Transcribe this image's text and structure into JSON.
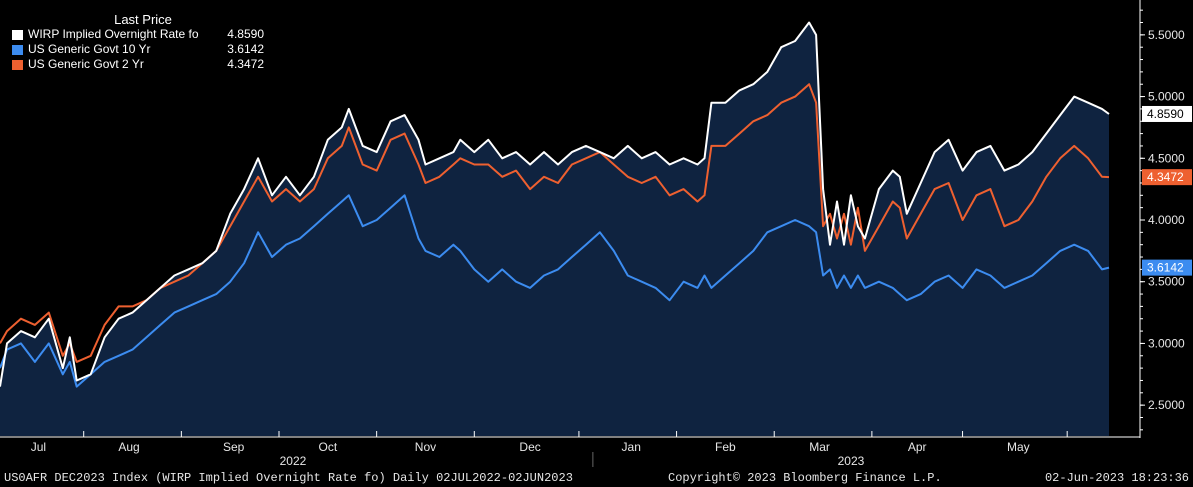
{
  "colors": {
    "background": "#000000",
    "plot_fill": "#0f2340",
    "wirp": "#ffffff",
    "govt10": "#3c8cf0",
    "govt2": "#ee6030",
    "axis": "#ffffff",
    "axis_text": "#e6e6e6"
  },
  "legend": {
    "header": "Last Price",
    "rows": [
      {
        "label": "WIRP Implied Overnight Rate fo",
        "value": "4.8590",
        "color": "#ffffff"
      },
      {
        "label": "US Generic Govt 10 Yr",
        "value": "3.6142",
        "color": "#3c8cf0"
      },
      {
        "label": "US Generic Govt 2 Yr",
        "value": "4.3472",
        "color": "#ee6030"
      }
    ]
  },
  "footer": {
    "left": "US0AFR DEC2023 Index (WIRP Implied Overnight Rate fo)  Daily 02JUL2022-02JUN2023",
    "center": "Copyright© 2023 Bloomberg Finance L.P.",
    "right": "02-Jun-2023 18:23:36"
  },
  "chart_data": {
    "type": "line",
    "title": "",
    "xlabel": "",
    "ylabel": "",
    "ylim": [
      2.25,
      5.75
    ],
    "y_ticks": [
      "2.5000",
      "3.0000",
      "3.5000",
      "4.0000",
      "4.5000",
      "5.0000",
      "5.5000"
    ],
    "y_tick_values": [
      2.5,
      3.0,
      3.5,
      4.0,
      4.5,
      5.0,
      5.5
    ],
    "x_range": [
      0,
      160
    ],
    "x_month_labels": [
      {
        "label": "Jul",
        "x": 5.5
      },
      {
        "label": "Aug",
        "x": 18.5
      },
      {
        "label": "Sep",
        "x": 33.5
      },
      {
        "label": "Oct",
        "x": 47
      },
      {
        "label": "Nov",
        "x": 61
      },
      {
        "label": "Dec",
        "x": 76
      },
      {
        "label": "Jan",
        "x": 90.5
      },
      {
        "label": "Feb",
        "x": 104
      },
      {
        "label": "Mar",
        "x": 117.5
      },
      {
        "label": "Apr",
        "x": 131.5
      },
      {
        "label": "May",
        "x": 146
      }
    ],
    "x_month_boundaries": [
      12,
      26,
      40,
      54,
      68,
      83,
      97,
      111,
      125,
      138,
      153
    ],
    "x_year_labels": [
      {
        "label": "2022",
        "x": 42
      },
      {
        "label": "2023",
        "x": 122
      }
    ],
    "year_divider_x": 85,
    "series": [
      {
        "name": "WIRP Implied Overnight Rate fo",
        "color": "#ffffff",
        "last_label": "4.8590",
        "points": [
          [
            0,
            2.65
          ],
          [
            1,
            3.0
          ],
          [
            3,
            3.1
          ],
          [
            5,
            3.05
          ],
          [
            7,
            3.2
          ],
          [
            9,
            2.8
          ],
          [
            10,
            3.05
          ],
          [
            11,
            2.7
          ],
          [
            13,
            2.75
          ],
          [
            15,
            3.05
          ],
          [
            17,
            3.2
          ],
          [
            19,
            3.25
          ],
          [
            21,
            3.35
          ],
          [
            23,
            3.45
          ],
          [
            25,
            3.55
          ],
          [
            27,
            3.6
          ],
          [
            29,
            3.65
          ],
          [
            31,
            3.75
          ],
          [
            33,
            4.05
          ],
          [
            35,
            4.25
          ],
          [
            37,
            4.5
          ],
          [
            39,
            4.2
          ],
          [
            41,
            4.35
          ],
          [
            43,
            4.2
          ],
          [
            45,
            4.35
          ],
          [
            47,
            4.65
          ],
          [
            49,
            4.75
          ],
          [
            50,
            4.9
          ],
          [
            52,
            4.6
          ],
          [
            54,
            4.55
          ],
          [
            56,
            4.8
          ],
          [
            58,
            4.85
          ],
          [
            60,
            4.65
          ],
          [
            61,
            4.45
          ],
          [
            63,
            4.5
          ],
          [
            65,
            4.55
          ],
          [
            66,
            4.65
          ],
          [
            68,
            4.55
          ],
          [
            70,
            4.65
          ],
          [
            72,
            4.5
          ],
          [
            74,
            4.55
          ],
          [
            76,
            4.45
          ],
          [
            78,
            4.55
          ],
          [
            80,
            4.45
          ],
          [
            82,
            4.55
          ],
          [
            84,
            4.6
          ],
          [
            86,
            4.55
          ],
          [
            88,
            4.5
          ],
          [
            90,
            4.6
          ],
          [
            92,
            4.5
          ],
          [
            94,
            4.55
          ],
          [
            96,
            4.45
          ],
          [
            98,
            4.5
          ],
          [
            100,
            4.45
          ],
          [
            101,
            4.5
          ],
          [
            102,
            4.95
          ],
          [
            104,
            4.95
          ],
          [
            106,
            5.05
          ],
          [
            108,
            5.1
          ],
          [
            110,
            5.2
          ],
          [
            112,
            5.4
          ],
          [
            114,
            5.45
          ],
          [
            116,
            5.6
          ],
          [
            117,
            5.5
          ],
          [
            118,
            4.25
          ],
          [
            119,
            3.8
          ],
          [
            120,
            4.15
          ],
          [
            121,
            3.8
          ],
          [
            122,
            4.2
          ],
          [
            123,
            3.95
          ],
          [
            124,
            3.85
          ],
          [
            126,
            4.25
          ],
          [
            128,
            4.4
          ],
          [
            129,
            4.35
          ],
          [
            130,
            4.05
          ],
          [
            132,
            4.3
          ],
          [
            134,
            4.55
          ],
          [
            136,
            4.65
          ],
          [
            138,
            4.4
          ],
          [
            140,
            4.55
          ],
          [
            142,
            4.6
          ],
          [
            144,
            4.4
          ],
          [
            146,
            4.45
          ],
          [
            148,
            4.55
          ],
          [
            150,
            4.7
          ],
          [
            152,
            4.85
          ],
          [
            154,
            5.0
          ],
          [
            156,
            4.95
          ],
          [
            158,
            4.9
          ],
          [
            159,
            4.859
          ]
        ]
      },
      {
        "name": "US Generic Govt 10 Yr",
        "color": "#3c8cf0",
        "last_label": "3.6142",
        "points": [
          [
            0,
            2.8
          ],
          [
            1,
            2.95
          ],
          [
            3,
            3.0
          ],
          [
            5,
            2.85
          ],
          [
            7,
            3.0
          ],
          [
            9,
            2.75
          ],
          [
            10,
            2.85
          ],
          [
            11,
            2.65
          ],
          [
            13,
            2.75
          ],
          [
            15,
            2.85
          ],
          [
            17,
            2.9
          ],
          [
            19,
            2.95
          ],
          [
            21,
            3.05
          ],
          [
            23,
            3.15
          ],
          [
            25,
            3.25
          ],
          [
            27,
            3.3
          ],
          [
            29,
            3.35
          ],
          [
            31,
            3.4
          ],
          [
            33,
            3.5
          ],
          [
            35,
            3.65
          ],
          [
            37,
            3.9
          ],
          [
            39,
            3.7
          ],
          [
            41,
            3.8
          ],
          [
            43,
            3.85
          ],
          [
            45,
            3.95
          ],
          [
            47,
            4.05
          ],
          [
            49,
            4.15
          ],
          [
            50,
            4.2
          ],
          [
            52,
            3.95
          ],
          [
            54,
            4.0
          ],
          [
            56,
            4.1
          ],
          [
            58,
            4.2
          ],
          [
            60,
            3.85
          ],
          [
            61,
            3.75
          ],
          [
            63,
            3.7
          ],
          [
            65,
            3.8
          ],
          [
            66,
            3.75
          ],
          [
            68,
            3.6
          ],
          [
            70,
            3.5
          ],
          [
            72,
            3.6
          ],
          [
            74,
            3.5
          ],
          [
            76,
            3.45
          ],
          [
            78,
            3.55
          ],
          [
            80,
            3.6
          ],
          [
            82,
            3.7
          ],
          [
            84,
            3.8
          ],
          [
            86,
            3.9
          ],
          [
            88,
            3.75
          ],
          [
            90,
            3.55
          ],
          [
            92,
            3.5
          ],
          [
            94,
            3.45
          ],
          [
            96,
            3.35
          ],
          [
            98,
            3.5
          ],
          [
            100,
            3.45
          ],
          [
            101,
            3.55
          ],
          [
            102,
            3.45
          ],
          [
            104,
            3.55
          ],
          [
            106,
            3.65
          ],
          [
            108,
            3.75
          ],
          [
            110,
            3.9
          ],
          [
            112,
            3.95
          ],
          [
            114,
            4.0
          ],
          [
            116,
            3.95
          ],
          [
            117,
            3.9
          ],
          [
            118,
            3.55
          ],
          [
            119,
            3.6
          ],
          [
            120,
            3.45
          ],
          [
            121,
            3.55
          ],
          [
            122,
            3.45
          ],
          [
            123,
            3.55
          ],
          [
            124,
            3.45
          ],
          [
            126,
            3.5
          ],
          [
            128,
            3.45
          ],
          [
            129,
            3.4
          ],
          [
            130,
            3.35
          ],
          [
            132,
            3.4
          ],
          [
            134,
            3.5
          ],
          [
            136,
            3.55
          ],
          [
            138,
            3.45
          ],
          [
            140,
            3.6
          ],
          [
            142,
            3.55
          ],
          [
            144,
            3.45
          ],
          [
            146,
            3.5
          ],
          [
            148,
            3.55
          ],
          [
            150,
            3.65
          ],
          [
            152,
            3.75
          ],
          [
            154,
            3.8
          ],
          [
            156,
            3.75
          ],
          [
            158,
            3.6
          ],
          [
            159,
            3.6142
          ]
        ]
      },
      {
        "name": "US Generic Govt 2 Yr",
        "color": "#ee6030",
        "last_label": "4.3472",
        "points": [
          [
            0,
            3.0
          ],
          [
            1,
            3.1
          ],
          [
            3,
            3.2
          ],
          [
            5,
            3.15
          ],
          [
            7,
            3.25
          ],
          [
            9,
            2.9
          ],
          [
            10,
            3.0
          ],
          [
            11,
            2.85
          ],
          [
            13,
            2.9
          ],
          [
            15,
            3.15
          ],
          [
            17,
            3.3
          ],
          [
            19,
            3.3
          ],
          [
            21,
            3.35
          ],
          [
            23,
            3.45
          ],
          [
            25,
            3.5
          ],
          [
            27,
            3.55
          ],
          [
            29,
            3.65
          ],
          [
            31,
            3.75
          ],
          [
            33,
            3.95
          ],
          [
            35,
            4.15
          ],
          [
            37,
            4.35
          ],
          [
            39,
            4.15
          ],
          [
            41,
            4.25
          ],
          [
            43,
            4.15
          ],
          [
            45,
            4.25
          ],
          [
            47,
            4.5
          ],
          [
            49,
            4.6
          ],
          [
            50,
            4.75
          ],
          [
            52,
            4.45
          ],
          [
            54,
            4.4
          ],
          [
            56,
            4.65
          ],
          [
            58,
            4.7
          ],
          [
            60,
            4.45
          ],
          [
            61,
            4.3
          ],
          [
            63,
            4.35
          ],
          [
            65,
            4.45
          ],
          [
            66,
            4.5
          ],
          [
            68,
            4.45
          ],
          [
            70,
            4.45
          ],
          [
            72,
            4.35
          ],
          [
            74,
            4.4
          ],
          [
            76,
            4.25
          ],
          [
            78,
            4.35
          ],
          [
            80,
            4.3
          ],
          [
            82,
            4.45
          ],
          [
            84,
            4.5
          ],
          [
            86,
            4.55
          ],
          [
            88,
            4.45
          ],
          [
            90,
            4.35
          ],
          [
            92,
            4.3
          ],
          [
            94,
            4.35
          ],
          [
            96,
            4.2
          ],
          [
            98,
            4.25
          ],
          [
            100,
            4.15
          ],
          [
            101,
            4.2
          ],
          [
            102,
            4.6
          ],
          [
            104,
            4.6
          ],
          [
            106,
            4.7
          ],
          [
            108,
            4.8
          ],
          [
            110,
            4.85
          ],
          [
            112,
            4.95
          ],
          [
            114,
            5.0
          ],
          [
            116,
            5.1
          ],
          [
            117,
            4.95
          ],
          [
            118,
            3.95
          ],
          [
            119,
            4.05
          ],
          [
            120,
            3.85
          ],
          [
            121,
            4.05
          ],
          [
            122,
            3.8
          ],
          [
            123,
            4.1
          ],
          [
            124,
            3.75
          ],
          [
            126,
            3.95
          ],
          [
            128,
            4.15
          ],
          [
            129,
            4.1
          ],
          [
            130,
            3.85
          ],
          [
            132,
            4.05
          ],
          [
            134,
            4.25
          ],
          [
            136,
            4.3
          ],
          [
            138,
            4.0
          ],
          [
            140,
            4.2
          ],
          [
            142,
            4.25
          ],
          [
            144,
            3.95
          ],
          [
            146,
            4.0
          ],
          [
            148,
            4.15
          ],
          [
            150,
            4.35
          ],
          [
            152,
            4.5
          ],
          [
            154,
            4.6
          ],
          [
            156,
            4.5
          ],
          [
            158,
            4.35
          ],
          [
            159,
            4.3472
          ]
        ]
      }
    ]
  }
}
